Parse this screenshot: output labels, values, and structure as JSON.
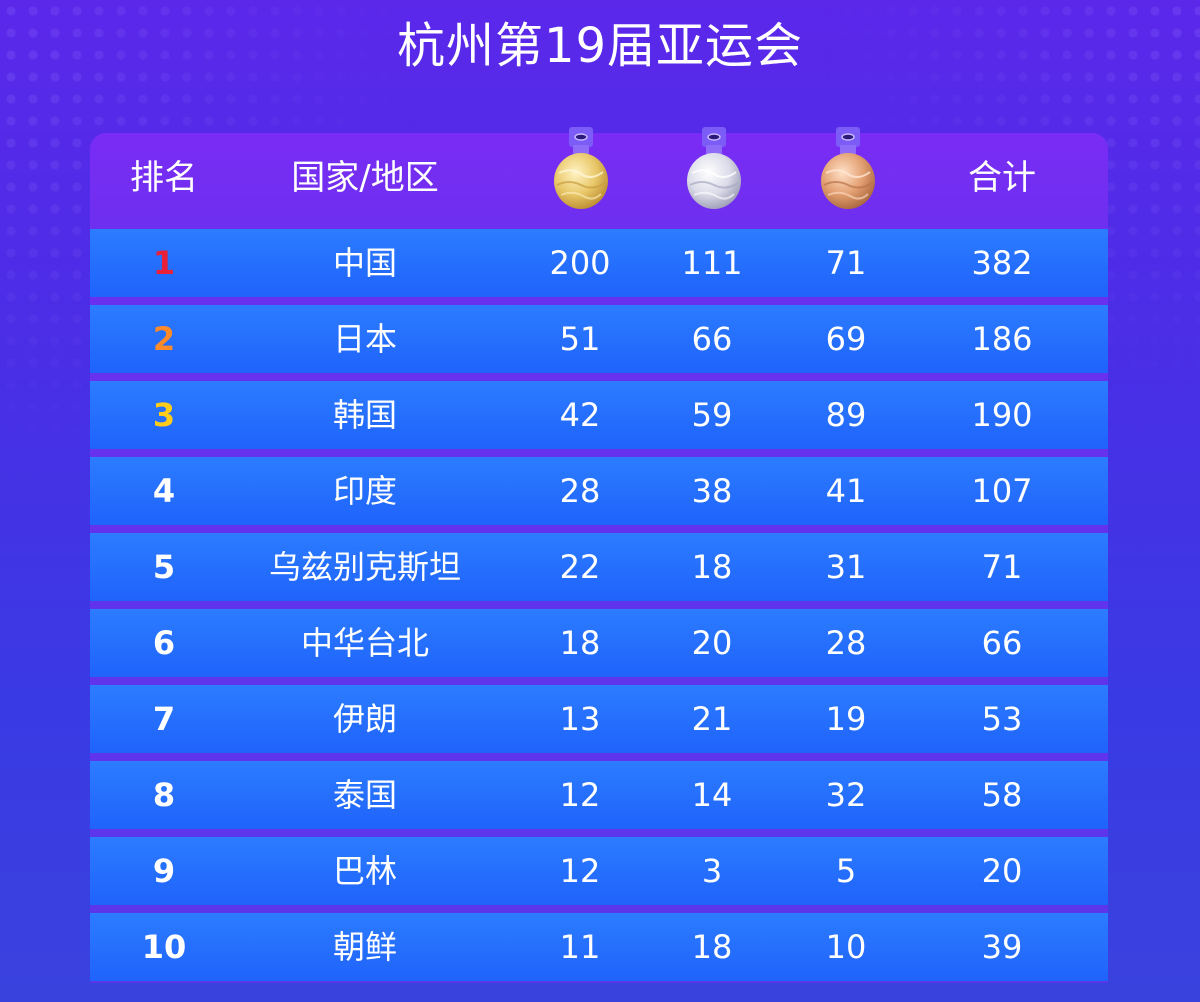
{
  "title": "杭州第19届亚运会",
  "colors": {
    "rank_1": "#e8203a",
    "rank_2": "#ff8a2a",
    "rank_3": "#ffcc1a",
    "rank_default": "#ffffff",
    "gold_medal": "#e9c86a",
    "silver_medal": "#dcdcea",
    "bronze_medal": "#e3a072"
  },
  "header": {
    "rank": "排名",
    "country": "国家/地区",
    "gold_icon": "gold-medal-icon",
    "silver_icon": "silver-medal-icon",
    "bronze_icon": "bronze-medal-icon",
    "total": "合计"
  },
  "rows": [
    {
      "rank": "1",
      "country": "中国",
      "gold": "200",
      "silver": "111",
      "bronze": "71",
      "total": "382"
    },
    {
      "rank": "2",
      "country": "日本",
      "gold": "51",
      "silver": "66",
      "bronze": "69",
      "total": "186"
    },
    {
      "rank": "3",
      "country": "韩国",
      "gold": "42",
      "silver": "59",
      "bronze": "89",
      "total": "190"
    },
    {
      "rank": "4",
      "country": "印度",
      "gold": "28",
      "silver": "38",
      "bronze": "41",
      "total": "107"
    },
    {
      "rank": "5",
      "country": "乌兹别克斯坦",
      "gold": "22",
      "silver": "18",
      "bronze": "31",
      "total": "71"
    },
    {
      "rank": "6",
      "country": "中华台北",
      "gold": "18",
      "silver": "20",
      "bronze": "28",
      "total": "66"
    },
    {
      "rank": "7",
      "country": "伊朗",
      "gold": "13",
      "silver": "21",
      "bronze": "19",
      "total": "53"
    },
    {
      "rank": "8",
      "country": "泰国",
      "gold": "12",
      "silver": "14",
      "bronze": "32",
      "total": "58"
    },
    {
      "rank": "9",
      "country": "巴林",
      "gold": "12",
      "silver": "3",
      "bronze": "5",
      "total": "20"
    },
    {
      "rank": "10",
      "country": "朝鲜",
      "gold": "11",
      "silver": "18",
      "bronze": "10",
      "total": "39"
    }
  ]
}
